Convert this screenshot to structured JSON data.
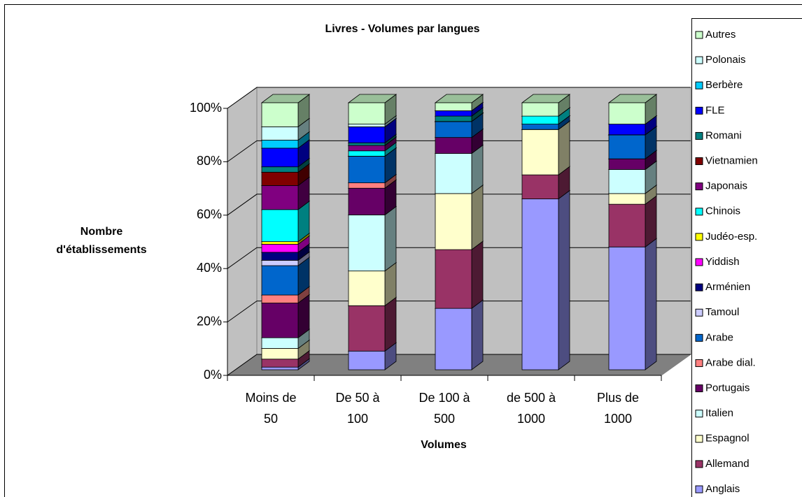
{
  "chart_data": {
    "type": "bar3d_stacked_percent",
    "title": "Livres - Volumes par langues",
    "y_label": "Nombre d'établissements",
    "x_label": "Volumes",
    "categories": [
      "Moins de 50",
      "De 50 à 100",
      "De 100 à 500",
      "de 500 à 1000",
      "Plus de 1000"
    ],
    "ylim": [
      0,
      100
    ],
    "yticks": [
      {
        "value": 0,
        "label": "0%"
      },
      {
        "value": 20,
        "label": "20%"
      },
      {
        "value": 40,
        "label": "40%"
      },
      {
        "value": 60,
        "label": "60%"
      },
      {
        "value": 80,
        "label": "80%"
      },
      {
        "value": 100,
        "label": "100%"
      }
    ],
    "grid": true,
    "legend": "right",
    "series": [
      {
        "name": "Anglais",
        "color": "#9999ff",
        "values": [
          1,
          7,
          23,
          64,
          46
        ]
      },
      {
        "name": "Allemand",
        "color": "#993366",
        "values": [
          3,
          17,
          22,
          9,
          16
        ]
      },
      {
        "name": "Espagnol",
        "color": "#ffffcc",
        "values": [
          4,
          13,
          21,
          17,
          4
        ]
      },
      {
        "name": "Italien",
        "color": "#ccffff",
        "values": [
          4,
          21,
          15,
          0,
          9
        ]
      },
      {
        "name": "Portugais",
        "color": "#660066",
        "values": [
          13,
          10,
          6,
          0,
          4
        ]
      },
      {
        "name": "Arabe dial.",
        "color": "#ff8080",
        "values": [
          3,
          2,
          0,
          0,
          0
        ]
      },
      {
        "name": "Arabe",
        "color": "#0066cc",
        "values": [
          11,
          10,
          6,
          2,
          9
        ]
      },
      {
        "name": "Tamoul",
        "color": "#ccccff",
        "values": [
          2,
          0,
          0,
          0,
          0
        ]
      },
      {
        "name": "Arménien",
        "color": "#000080",
        "values": [
          3,
          0,
          0,
          0,
          0
        ]
      },
      {
        "name": "Yiddish",
        "color": "#ff00ff",
        "values": [
          3,
          0,
          0,
          0,
          0
        ]
      },
      {
        "name": "Judéo-esp.",
        "color": "#ffff00",
        "values": [
          1,
          0,
          0,
          0,
          0
        ]
      },
      {
        "name": "Chinois",
        "color": "#00ffff",
        "values": [
          12,
          2,
          0,
          3,
          0
        ]
      },
      {
        "name": "Japonais",
        "color": "#800080",
        "values": [
          9,
          2,
          0,
          0,
          0
        ]
      },
      {
        "name": "Vietnamien",
        "color": "#800000",
        "values": [
          5,
          0,
          0,
          0,
          0
        ]
      },
      {
        "name": "Romani",
        "color": "#008080",
        "values": [
          2,
          1,
          2,
          0,
          0
        ]
      },
      {
        "name": "FLE",
        "color": "#0000ff",
        "values": [
          7,
          6,
          2,
          0,
          4
        ]
      },
      {
        "name": "Berbère",
        "color": "#00ccff",
        "values": [
          3,
          0,
          0,
          0,
          0
        ]
      },
      {
        "name": "Polonais",
        "color": "#ccffff",
        "values": [
          5,
          1,
          0,
          0,
          0
        ]
      },
      {
        "name": "Autres",
        "color": "#ccffcc",
        "values": [
          9,
          8,
          3,
          5,
          8
        ]
      }
    ]
  }
}
